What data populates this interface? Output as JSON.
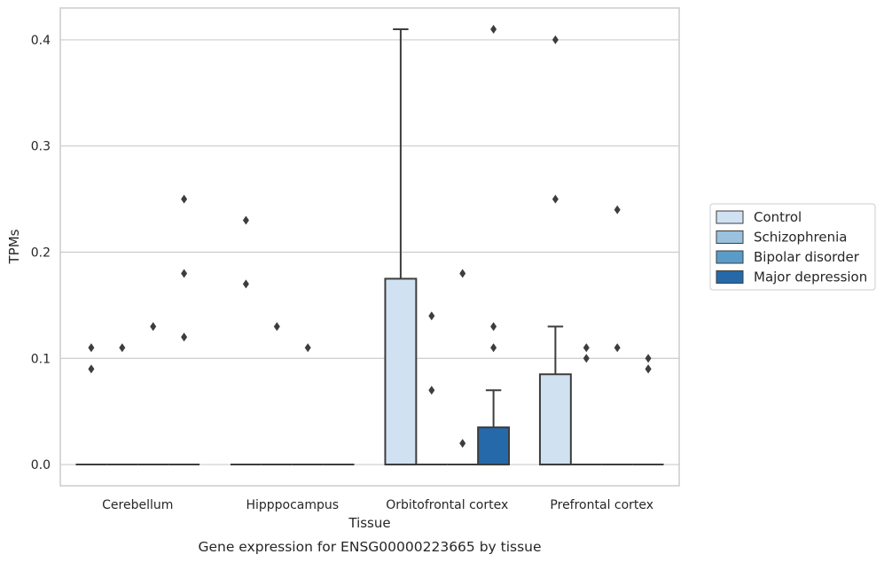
{
  "chart_data": {
    "type": "box",
    "title": "",
    "caption": "Gene expression for ENSG00000223665 by tissue",
    "xlabel": "Tissue",
    "ylabel": "TPMs",
    "ylim": [
      -0.02,
      0.43
    ],
    "yticks": [
      0.0,
      0.1,
      0.2,
      0.3,
      0.4
    ],
    "ytick_labels": [
      "0.0",
      "0.1",
      "0.2",
      "0.3",
      "0.4"
    ],
    "grid": "horizontal",
    "legend_position": "right",
    "categories": [
      "Cerebellum",
      "Hipppocampus",
      "Orbitofrontal cortex",
      "Prefrontal cortex"
    ],
    "series": [
      {
        "name": "Control",
        "color": "#d0e1f2",
        "boxes": [
          {
            "q1": 0,
            "median": 0,
            "q3": 0,
            "whisker_low": 0,
            "whisker_high": 0,
            "outliers": [
              0.09,
              0.11
            ]
          },
          {
            "q1": 0,
            "median": 0,
            "q3": 0,
            "whisker_low": 0,
            "whisker_high": 0,
            "outliers": [
              0.17,
              0.23
            ]
          },
          {
            "q1": 0,
            "median": 0,
            "q3": 0.175,
            "whisker_low": 0,
            "whisker_high": 0.41,
            "outliers": []
          },
          {
            "q1": 0,
            "median": 0,
            "q3": 0.085,
            "whisker_low": 0,
            "whisker_high": 0.13,
            "outliers": [
              0.25,
              0.4
            ]
          }
        ]
      },
      {
        "name": "Schizophrenia",
        "color": "#9ac1dd",
        "boxes": [
          {
            "q1": 0,
            "median": 0,
            "q3": 0,
            "whisker_low": 0,
            "whisker_high": 0,
            "outliers": [
              0.11
            ]
          },
          {
            "q1": 0,
            "median": 0,
            "q3": 0,
            "whisker_low": 0,
            "whisker_high": 0,
            "outliers": [
              0.13
            ]
          },
          {
            "q1": 0,
            "median": 0,
            "q3": 0,
            "whisker_low": 0,
            "whisker_high": 0,
            "outliers": [
              0.07,
              0.14
            ]
          },
          {
            "q1": 0,
            "median": 0,
            "q3": 0,
            "whisker_low": 0,
            "whisker_high": 0,
            "outliers": [
              0.1,
              0.11
            ]
          }
        ]
      },
      {
        "name": "Bipolar disorder",
        "color": "#5a9cc9",
        "boxes": [
          {
            "q1": 0,
            "median": 0,
            "q3": 0,
            "whisker_low": 0,
            "whisker_high": 0,
            "outliers": [
              0.13
            ]
          },
          {
            "q1": 0,
            "median": 0,
            "q3": 0,
            "whisker_low": 0,
            "whisker_high": 0,
            "outliers": [
              0.11
            ]
          },
          {
            "q1": 0,
            "median": 0,
            "q3": 0,
            "whisker_low": 0,
            "whisker_high": 0,
            "outliers": [
              0.02,
              0.18
            ]
          },
          {
            "q1": 0,
            "median": 0,
            "q3": 0,
            "whisker_low": 0,
            "whisker_high": 0,
            "outliers": [
              0.11,
              0.24
            ]
          }
        ]
      },
      {
        "name": "Major depression",
        "color": "#2669a9",
        "boxes": [
          {
            "q1": 0,
            "median": 0,
            "q3": 0,
            "whisker_low": 0,
            "whisker_high": 0,
            "outliers": [
              0.12,
              0.18,
              0.25
            ]
          },
          {
            "q1": 0,
            "median": 0,
            "q3": 0,
            "whisker_low": 0,
            "whisker_high": 0,
            "outliers": []
          },
          {
            "q1": 0,
            "median": 0,
            "q3": 0.035,
            "whisker_low": 0,
            "whisker_high": 0.07,
            "outliers": [
              0.11,
              0.13,
              0.41
            ]
          },
          {
            "q1": 0,
            "median": 0,
            "q3": 0,
            "whisker_low": 0,
            "whisker_high": 0,
            "outliers": [
              0.09,
              0.09,
              0.1
            ]
          }
        ]
      }
    ]
  }
}
